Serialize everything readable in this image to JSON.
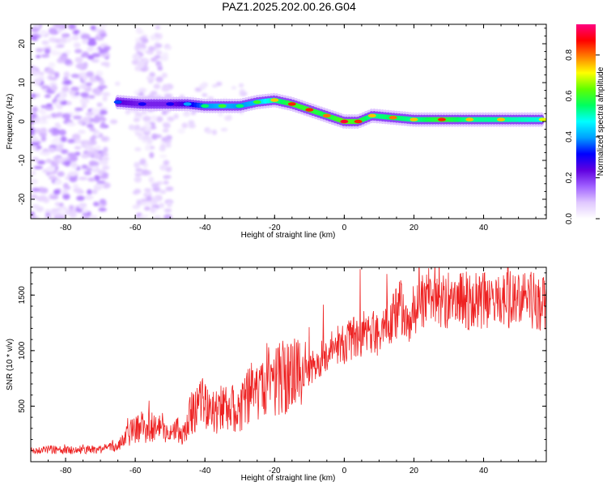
{
  "title": "PAZ1.2025.202.00.26.G04",
  "chart_data": [
    {
      "type": "heatmap",
      "xlabel": "Height of straight line (km)",
      "ylabel": "Frequency (Hz)",
      "xlim": [
        -90,
        58
      ],
      "ylim": [
        -25,
        25
      ],
      "xticks": [
        -80,
        -60,
        -40,
        -20,
        0,
        20,
        40
      ],
      "yticks": [
        -20,
        -10,
        0,
        10,
        20
      ],
      "colorbar": {
        "label": "Normalized spectral amplitude",
        "range": [
          0,
          0.95
        ],
        "ticks": [
          0.0,
          0.2,
          0.4,
          0.6,
          0.8
        ],
        "colormap": [
          "#ffffff",
          "#e0c8ff",
          "#a060ff",
          "#6000e0",
          "#0000ff",
          "#00a0ff",
          "#00ffff",
          "#00ff60",
          "#60ff00",
          "#ffff00",
          "#ff8000",
          "#ff0000",
          "#ff0080"
        ]
      },
      "ridge": [
        {
          "x": -65,
          "y": 5,
          "a": 0.35
        },
        {
          "x": -58,
          "y": 4.5,
          "a": 0.3
        },
        {
          "x": -50,
          "y": 4.5,
          "a": 0.3
        },
        {
          "x": -45,
          "y": 4.5,
          "a": 0.4
        },
        {
          "x": -40,
          "y": 4.0,
          "a": 0.55
        },
        {
          "x": -35,
          "y": 4.0,
          "a": 0.6
        },
        {
          "x": -30,
          "y": 4.0,
          "a": 0.55
        },
        {
          "x": -25,
          "y": 5.0,
          "a": 0.6
        },
        {
          "x": -20,
          "y": 5.5,
          "a": 0.75
        },
        {
          "x": -15,
          "y": 4.5,
          "a": 0.85
        },
        {
          "x": -10,
          "y": 3.0,
          "a": 0.85
        },
        {
          "x": -5,
          "y": 1.5,
          "a": 0.8
        },
        {
          "x": 0,
          "y": 0.0,
          "a": 0.9
        },
        {
          "x": 4,
          "y": 0.0,
          "a": 0.85
        },
        {
          "x": 8,
          "y": 1.5,
          "a": 0.75
        },
        {
          "x": 14,
          "y": 1.0,
          "a": 0.8
        },
        {
          "x": 20,
          "y": 0.5,
          "a": 0.75
        },
        {
          "x": 28,
          "y": 0.5,
          "a": 0.85
        },
        {
          "x": 36,
          "y": 0.5,
          "a": 0.75
        },
        {
          "x": 45,
          "y": 0.5,
          "a": 0.75
        },
        {
          "x": 57,
          "y": 0.5,
          "a": 0.7
        }
      ]
    },
    {
      "type": "line",
      "xlabel": "Height of straight line (km)",
      "ylabel": "SNR (10 * v/v)",
      "xlim": [
        -90,
        58
      ],
      "ylim": [
        0,
        1750
      ],
      "xticks": [
        -80,
        -60,
        -40,
        -20,
        0,
        20,
        40
      ],
      "yticks": [
        500,
        1000,
        1500
      ],
      "color": "#ee2222",
      "series": [
        {
          "x": [
            -90,
            -85,
            -80,
            -75,
            -70,
            -65,
            -62,
            -60,
            -55,
            -50,
            -46,
            -44,
            -42,
            -40,
            -38,
            -35,
            -32,
            -30,
            -28,
            -25,
            -22,
            -20,
            -18,
            -15,
            -12,
            -10,
            -8,
            -5,
            -2,
            0,
            2,
            5,
            8,
            10,
            14,
            16,
            18,
            20,
            22,
            25,
            30,
            35,
            40,
            45,
            50,
            55,
            57
          ],
          "y": [
            100,
            110,
            100,
            110,
            110,
            140,
            240,
            300,
            310,
            300,
            250,
            430,
            520,
            520,
            430,
            470,
            480,
            460,
            600,
            650,
            750,
            720,
            750,
            780,
            800,
            820,
            900,
            950,
            1050,
            1050,
            1100,
            1150,
            1150,
            1150,
            1300,
            1400,
            1250,
            1380,
            1420,
            1450,
            1450,
            1450,
            1450,
            1450,
            1470,
            1450,
            1420
          ]
        }
      ]
    }
  ]
}
